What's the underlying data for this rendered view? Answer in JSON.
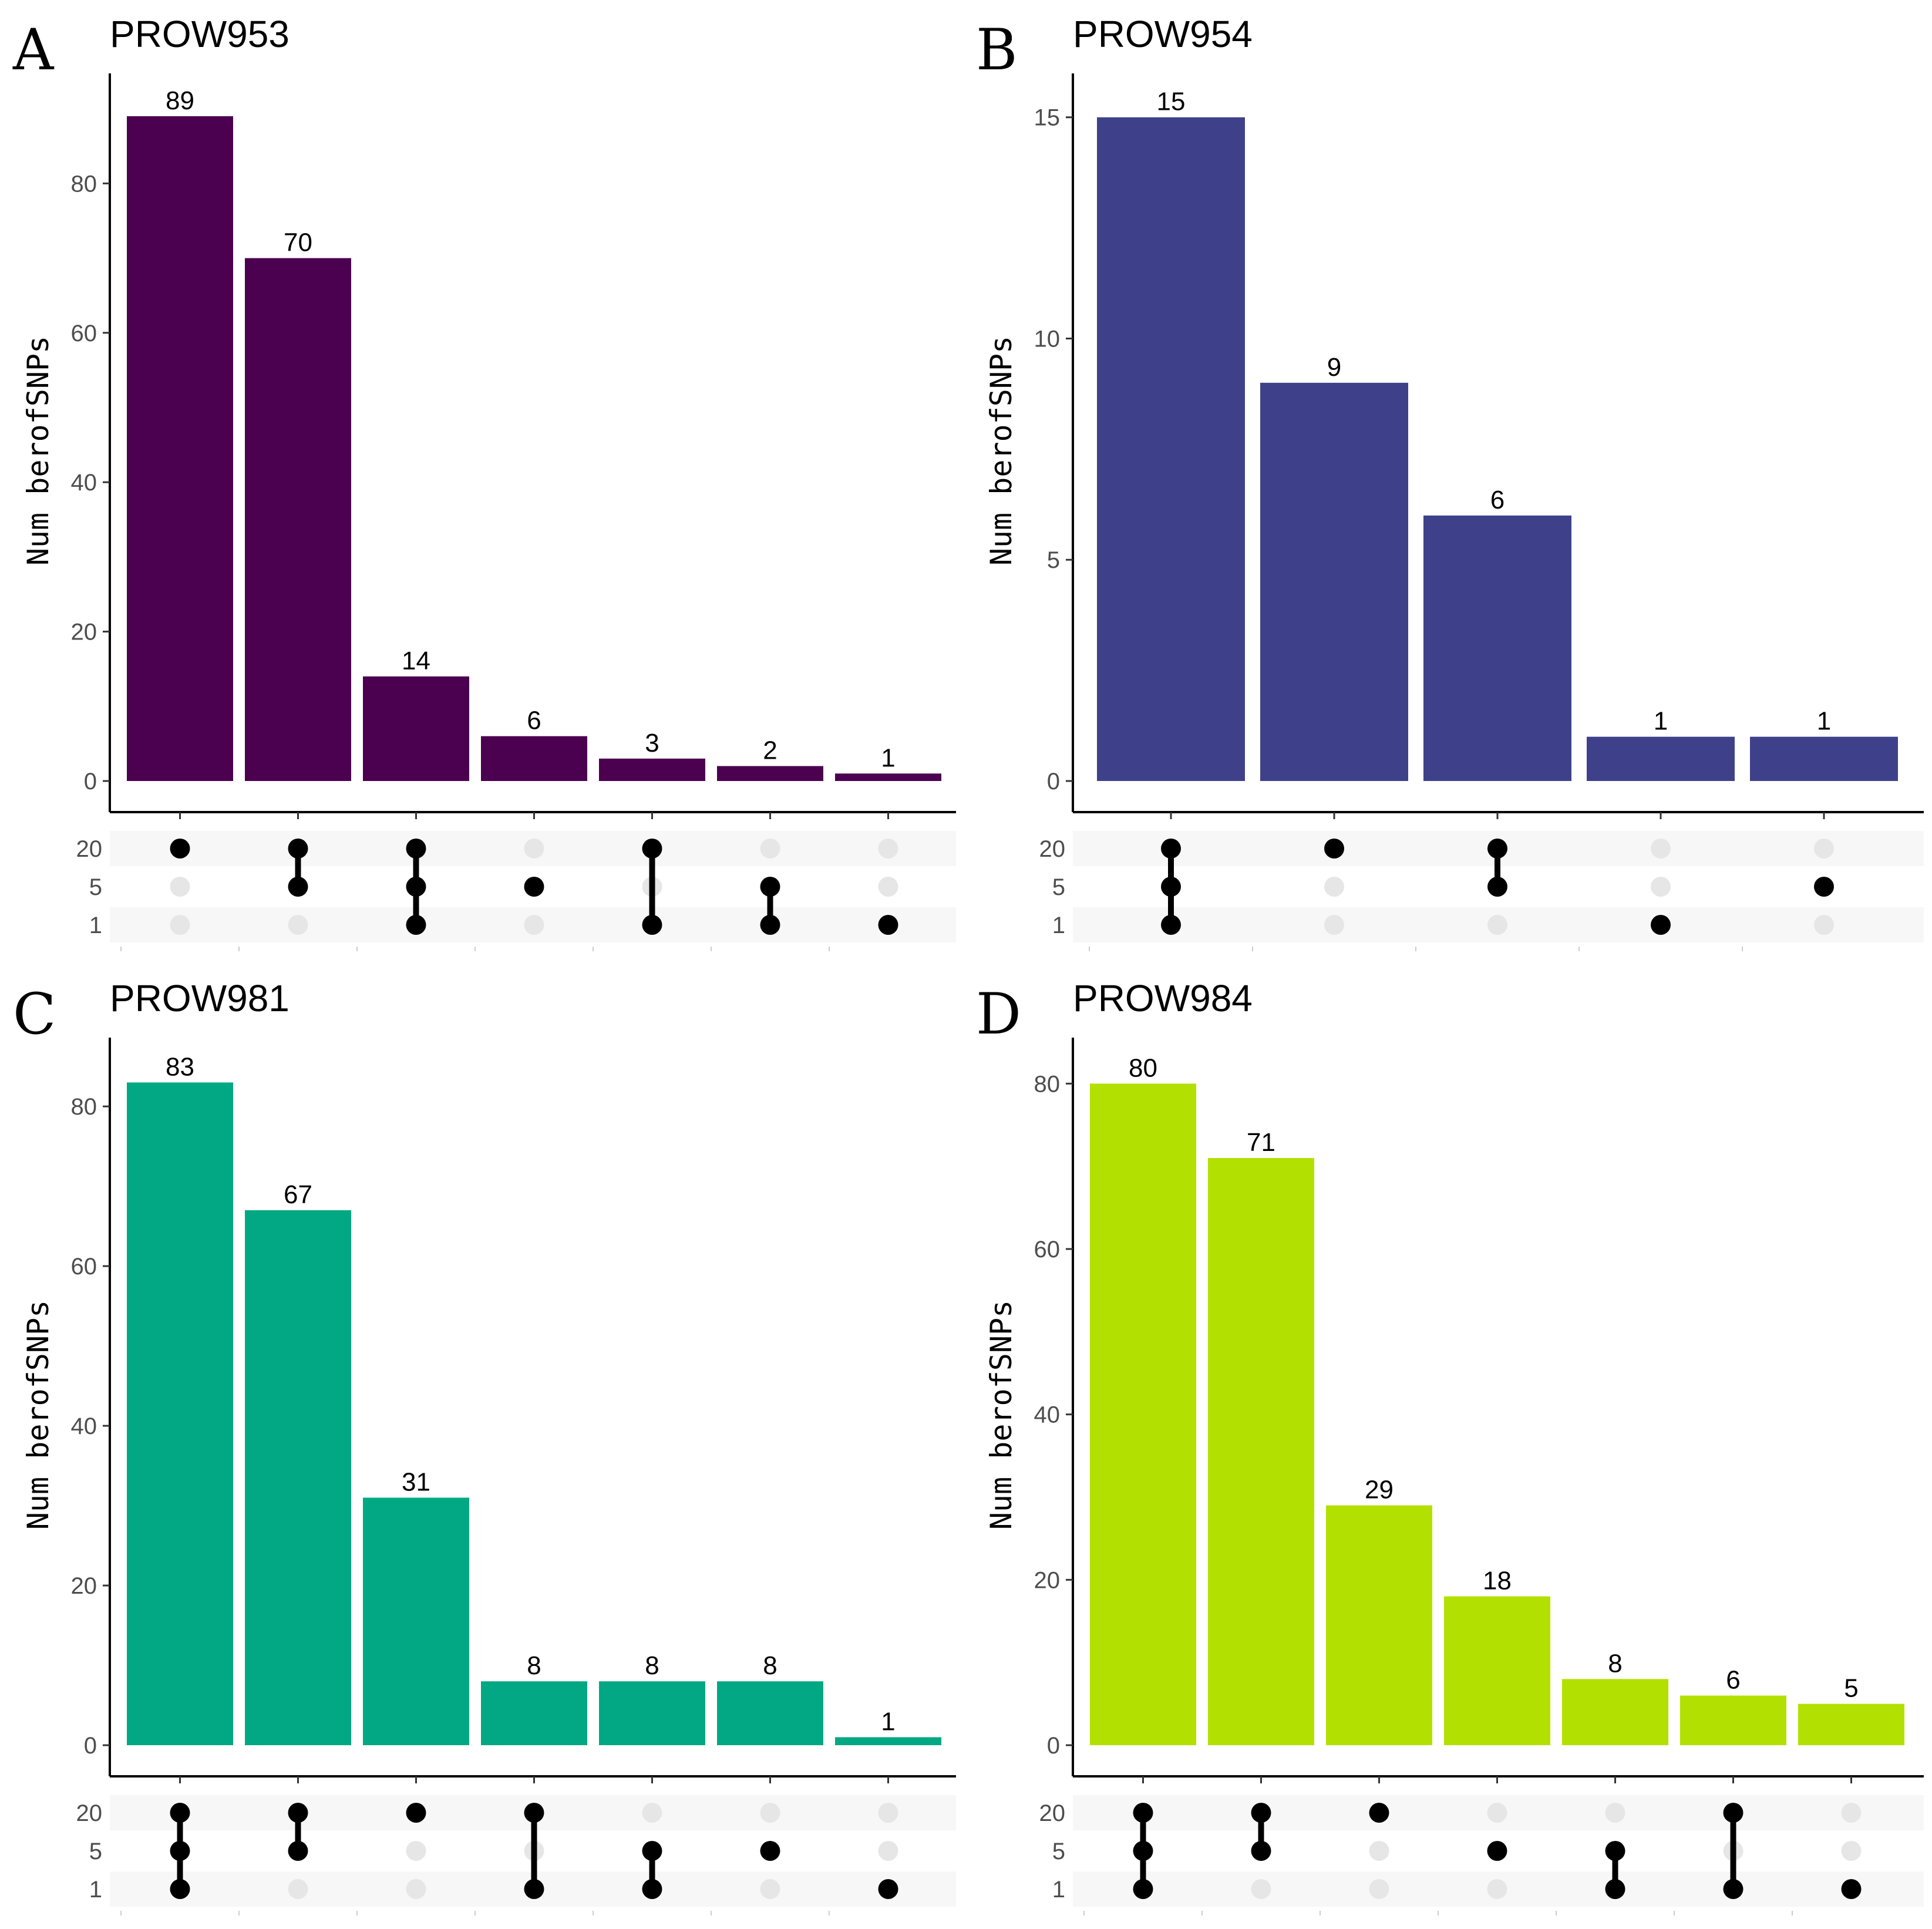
{
  "chart_data": [
    {
      "type": "bar",
      "panel_letter": "A",
      "title": "PROW953",
      "ylabel": "Num berofSNPs",
      "color": "#4B0050",
      "ylim": [
        0,
        93
      ],
      "yticks": [
        0,
        20,
        40,
        60,
        80
      ],
      "values": [
        89,
        70,
        14,
        6,
        3,
        2,
        1
      ],
      "matrix_sets": [
        "20",
        "5",
        "1"
      ],
      "memberships": [
        [
          "20"
        ],
        [
          "20",
          "5"
        ],
        [
          "20",
          "5",
          "1"
        ],
        [
          "5"
        ],
        [
          "20",
          "1"
        ],
        [
          "5",
          "1"
        ],
        [
          "1"
        ]
      ]
    },
    {
      "type": "bar",
      "panel_letter": "B",
      "title": "PROW954",
      "ylabel": "Num berofSNPs",
      "color": "#3E418A",
      "ylim": [
        0,
        15.7
      ],
      "yticks": [
        0,
        5,
        10,
        15
      ],
      "values": [
        15,
        9,
        6,
        1,
        1
      ],
      "matrix_sets": [
        "20",
        "5",
        "1"
      ],
      "memberships": [
        [
          "20",
          "5",
          "1"
        ],
        [
          "20"
        ],
        [
          "20",
          "5"
        ],
        [
          "1"
        ],
        [
          "5"
        ]
      ]
    },
    {
      "type": "bar",
      "panel_letter": "C",
      "title": "PROW981",
      "ylabel": "Num berofSNPs",
      "color": "#02A883",
      "ylim": [
        0,
        87
      ],
      "yticks": [
        0,
        20,
        40,
        60,
        80
      ],
      "values": [
        83,
        67,
        31,
        8,
        8,
        8,
        1
      ],
      "matrix_sets": [
        "20",
        "5",
        "1"
      ],
      "memberships": [
        [
          "20",
          "5",
          "1"
        ],
        [
          "20",
          "5"
        ],
        [
          "20"
        ],
        [
          "20",
          "1"
        ],
        [
          "5",
          "1"
        ],
        [
          "5"
        ],
        [
          "1"
        ]
      ]
    },
    {
      "type": "bar",
      "panel_letter": "D",
      "title": "PROW984",
      "ylabel": "Num berofSNPs",
      "color": "#B2E001",
      "ylim": [
        0,
        84
      ],
      "yticks": [
        0,
        20,
        40,
        60,
        80
      ],
      "values": [
        80,
        71,
        29,
        18,
        8,
        6,
        5
      ],
      "matrix_sets": [
        "20",
        "5",
        "1"
      ],
      "memberships": [
        [
          "20",
          "5",
          "1"
        ],
        [
          "20",
          "5"
        ],
        [
          "20"
        ],
        [
          "5"
        ],
        [
          "5",
          "1"
        ],
        [
          "20",
          "1"
        ],
        [
          "1"
        ]
      ]
    }
  ]
}
